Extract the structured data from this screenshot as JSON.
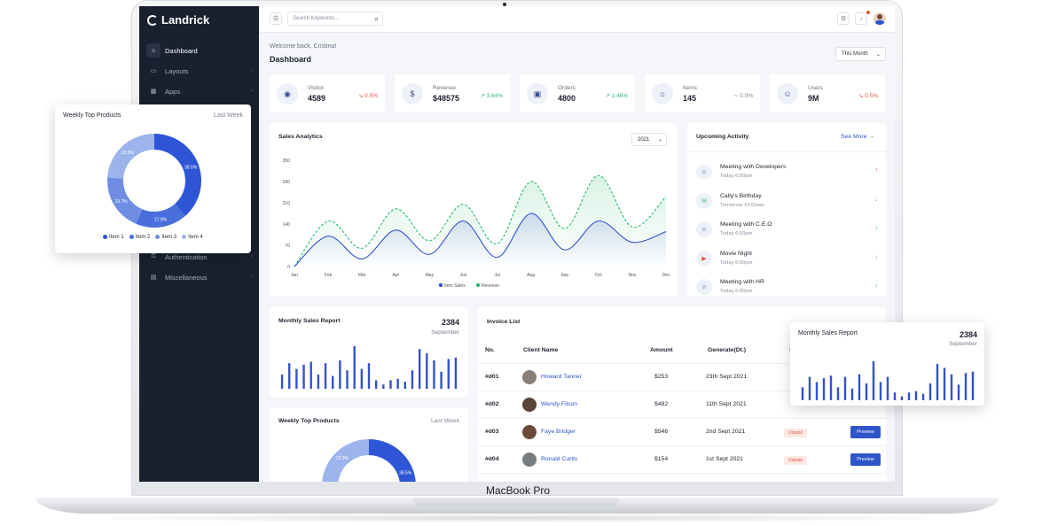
{
  "brand": {
    "name": "Landrick"
  },
  "device_label": "MacBook Pro",
  "sidebar": {
    "items": [
      {
        "label": "Dashboard",
        "icon": "home-icon",
        "active": true
      },
      {
        "label": "Layouts",
        "icon": "layout-icon"
      },
      {
        "label": "Apps",
        "icon": "apps-icon"
      },
      {
        "label": "Authentication",
        "icon": "lock-icon"
      },
      {
        "label": "Miscellaneous",
        "icon": "file-icon"
      }
    ]
  },
  "topbar": {
    "search_placeholder": "Search Keywords..."
  },
  "header": {
    "welcome": "Welcome back, Cristina!",
    "title": "Dashboard",
    "period": "This Month"
  },
  "stats": [
    {
      "label": "Visitor",
      "value": "4589",
      "trend": "0.5%",
      "direction": "down",
      "icon": "user-circle-icon",
      "color": "#e0563f"
    },
    {
      "label": "Revenue",
      "value": "$48575",
      "trend": "3.84%",
      "direction": "up",
      "icon": "dollar-icon",
      "color": "#2eb872"
    },
    {
      "label": "Orders",
      "value": "4800",
      "trend": "1.46%",
      "direction": "up",
      "icon": "bag-icon",
      "color": "#2eb872"
    },
    {
      "label": "Items",
      "value": "145",
      "trend": "0.0%",
      "direction": "flat",
      "icon": "store-icon",
      "color": "#7a8292"
    },
    {
      "label": "Users",
      "value": "9M",
      "trend": "0.5%",
      "direction": "down",
      "icon": "users-icon",
      "color": "#e0563f"
    }
  ],
  "sales_analytics": {
    "title": "Sales Analytics",
    "year": "2021"
  },
  "upcoming": {
    "title": "Upcoming Activity",
    "see_more": "See More",
    "items": [
      {
        "title": "Meeting with Developers",
        "time": "Today 6:00pm",
        "icon": "users-icon",
        "arrow": "↑",
        "arrow_color": "#e0563f"
      },
      {
        "title": "Cally's Birthday",
        "time": "Tomorrow 10:00am",
        "icon": "gift-icon",
        "arrow": "↓",
        "arrow_color": "#2eb872"
      },
      {
        "title": "Meeting with C.E.O",
        "time": "Today 6:00pm",
        "icon": "users-icon",
        "arrow": "↓",
        "arrow_color": "#2eb872"
      },
      {
        "title": "Movie Night",
        "time": "Today 6:00pm",
        "icon": "film-icon",
        "arrow": "↓",
        "arrow_color": "#2eb872"
      },
      {
        "title": "Meeting with HR",
        "time": "Today 6:00pm",
        "icon": "users-icon",
        "arrow": "↓",
        "arrow_color": "#2eb872"
      }
    ]
  },
  "monthly_sales": {
    "title": "Monthly Sales Report",
    "value": "2384",
    "period": "September"
  },
  "weekly_top": {
    "title": "Weekly Top Products",
    "period": "Last Week"
  },
  "invoice": {
    "title": "Invoice List",
    "headers": {
      "no": "No.",
      "client": "Client Name",
      "amount": "Amount",
      "date": "Generate(Dt.)",
      "status": "S"
    },
    "rows": [
      {
        "no": "#d01",
        "client": "Howard Tanner",
        "amount": "$253",
        "date": "23th Sept 2021",
        "status": "",
        "action": ""
      },
      {
        "no": "#d02",
        "client": "Wendy Filson",
        "amount": "$482",
        "date": "11th Sept 2021",
        "status": "",
        "action": ""
      },
      {
        "no": "#d03",
        "client": "Faye Bridger",
        "amount": "$546",
        "date": "2nd Sept 2021",
        "status": "Unpaid",
        "action": "Preview"
      },
      {
        "no": "#d04",
        "client": "Ronald Curtis",
        "amount": "$154",
        "date": "1st Sept 2021",
        "status": "Unpaid",
        "action": "Preview"
      }
    ]
  },
  "chart_data": [
    {
      "type": "line",
      "x": [
        "Jan",
        "Feb",
        "Mar",
        "Apr",
        "May",
        "Jun",
        "Jul",
        "Aug",
        "Sep",
        "Oct",
        "Nov",
        "Dec"
      ],
      "y_ticks": [
        "0",
        "70",
        "140",
        "210",
        "280",
        "350"
      ],
      "ylim": [
        0,
        350
      ],
      "legend_position": "bottom",
      "series": [
        {
          "name": "Item Sales",
          "color": "#3452c9",
          "values": [
            0,
            100,
            25,
            120,
            40,
            150,
            30,
            175,
            55,
            150,
            80,
            115
          ]
        },
        {
          "name": "Revenue",
          "color": "#2eb872",
          "values": [
            0,
            150,
            60,
            190,
            85,
            205,
            75,
            280,
            125,
            300,
            130,
            230
          ]
        }
      ]
    },
    {
      "type": "bar",
      "values": [
        10,
        18,
        14,
        17,
        19,
        10,
        18,
        9,
        20,
        13,
        30,
        14,
        18,
        6,
        3,
        6,
        7,
        5,
        13,
        28,
        25,
        20,
        12,
        21,
        22
      ],
      "color": "#3452c9"
    },
    {
      "type": "pie",
      "categories": [
        "Item 1",
        "Item 2",
        "Item 3",
        "Item 4"
      ],
      "values": [
        38.5,
        17.9,
        19.7,
        23.9
      ],
      "labels": [
        "38.5%",
        "17.9%",
        "19.7%",
        "23.9%"
      ],
      "colors": [
        "#2e55d6",
        "#4a6fdc",
        "#6f8ee3",
        "#9db3ec"
      ],
      "legend_position": "bottom"
    }
  ]
}
